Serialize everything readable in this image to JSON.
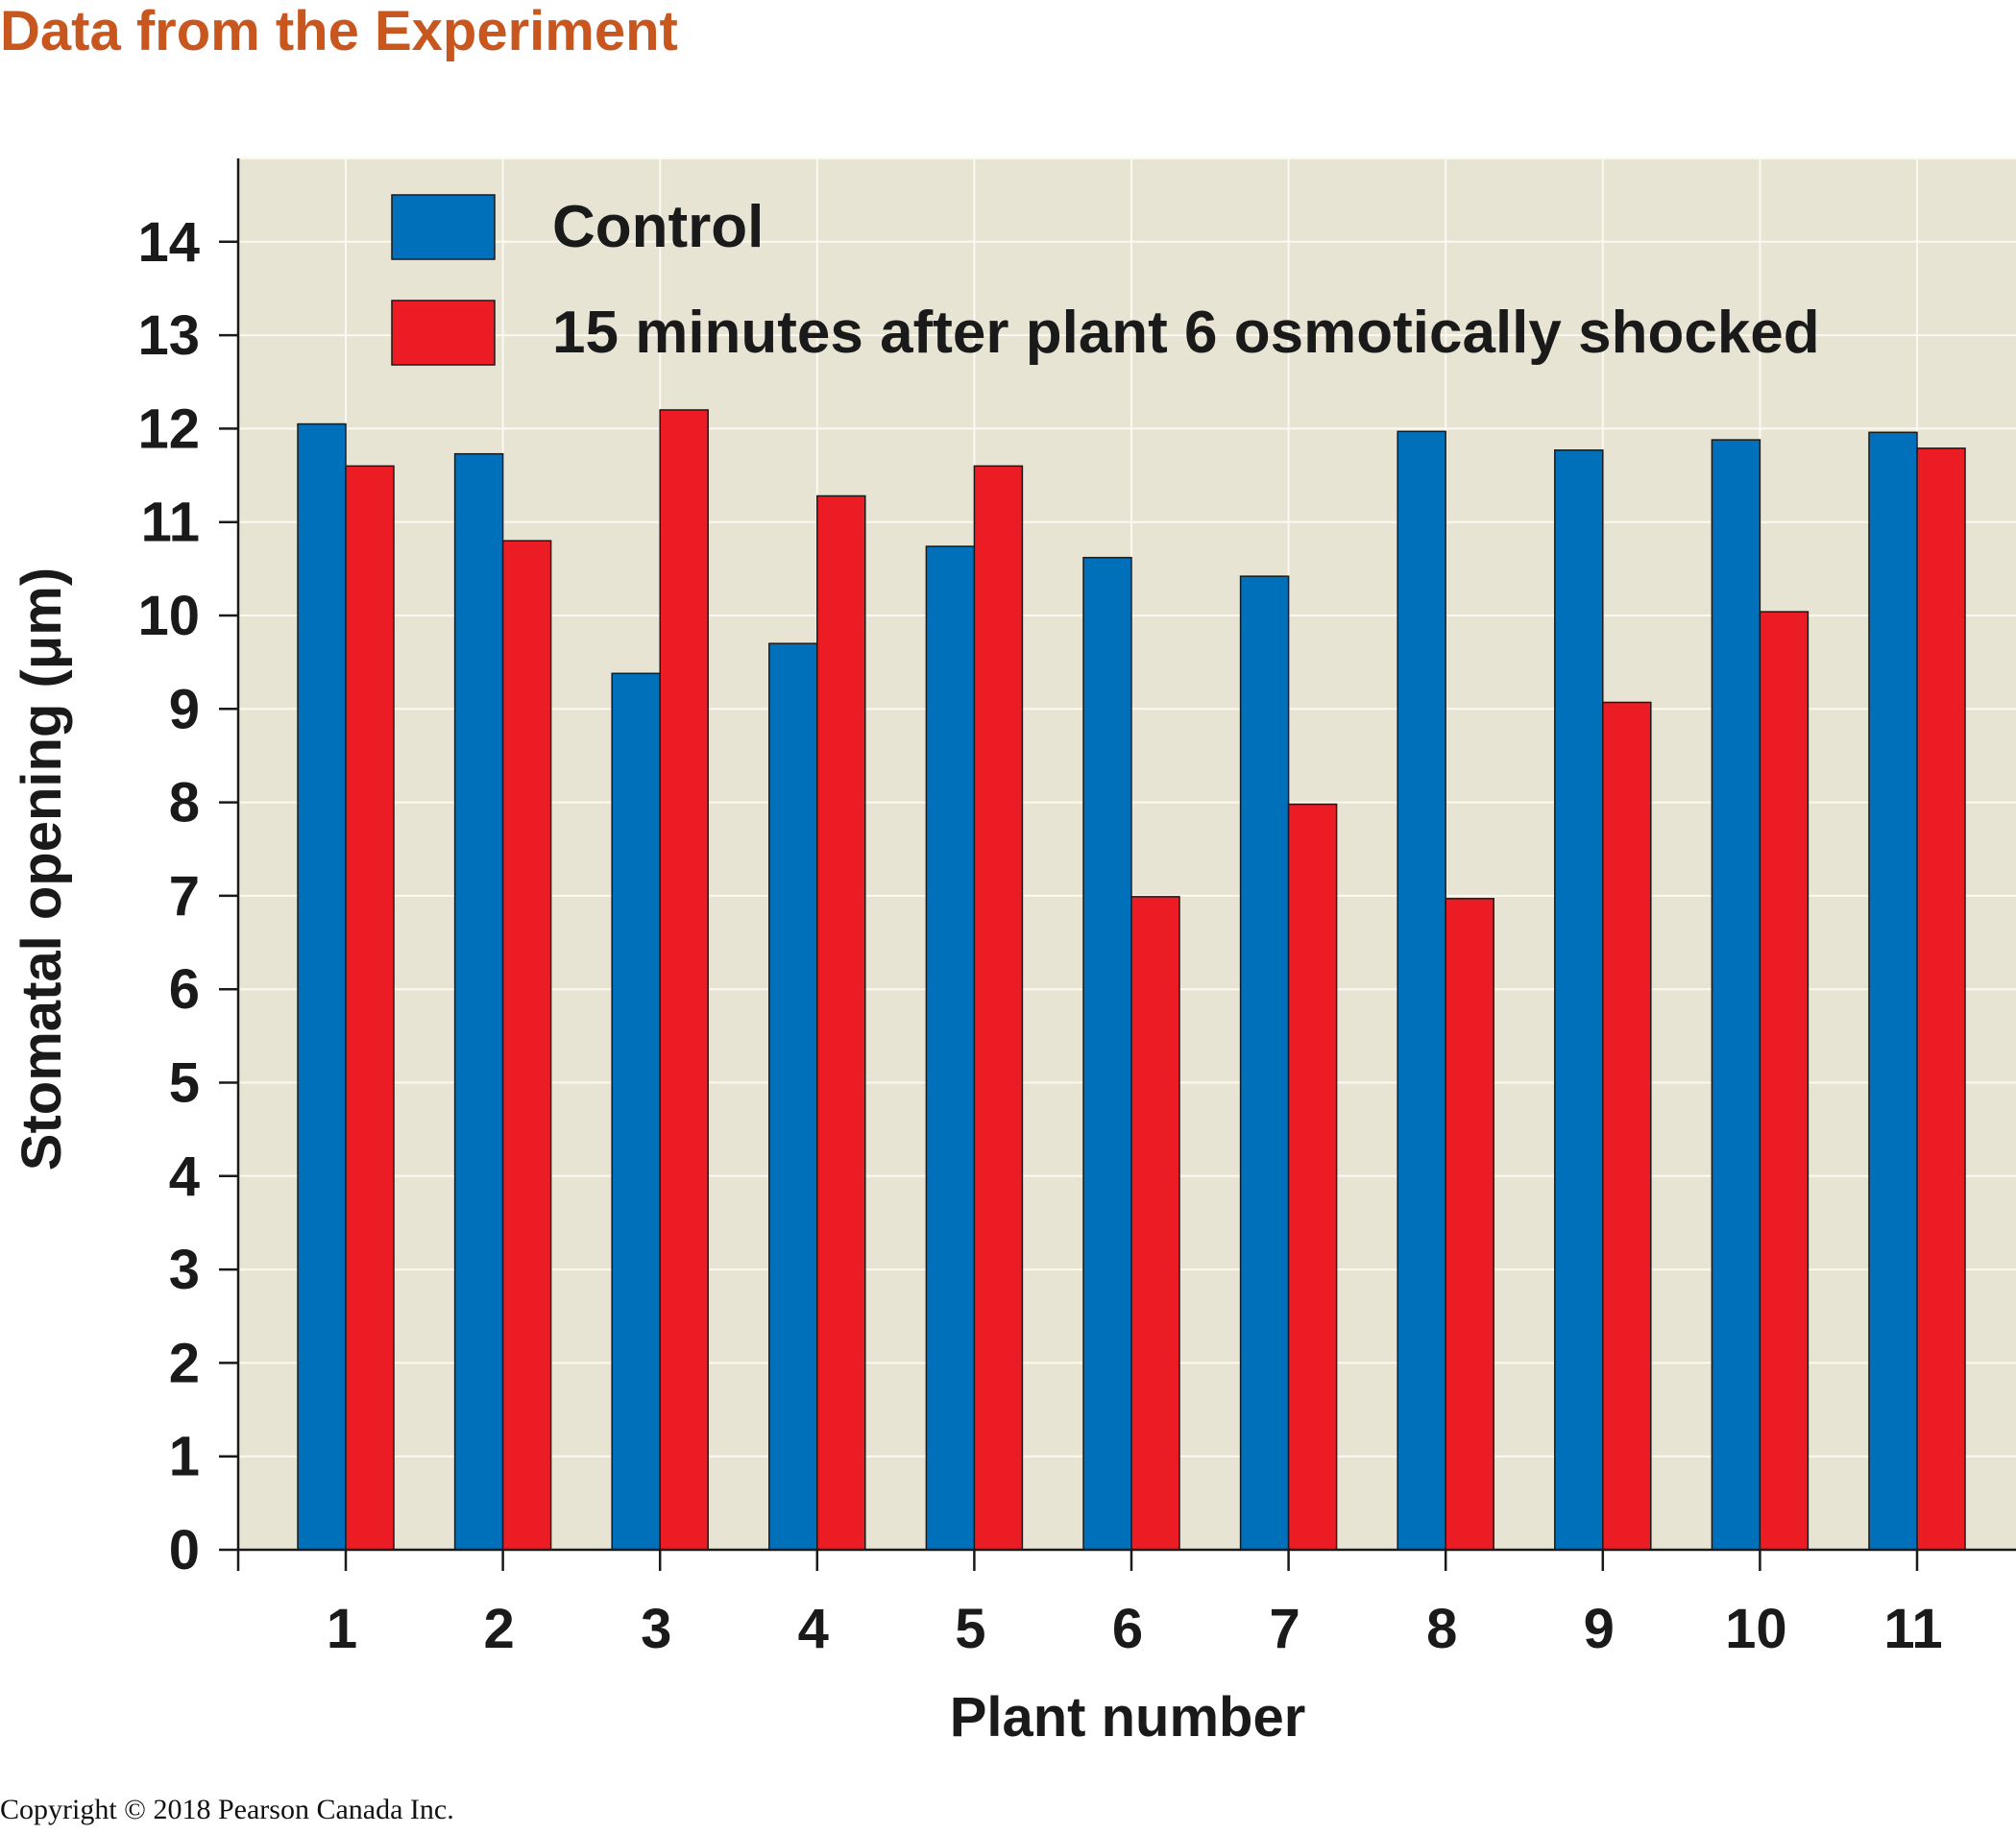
{
  "heading": "Data from the Experiment",
  "copyright": "Copyright © 2018 Pearson Canada Inc.",
  "colors": {
    "heading": "#c8561f",
    "control": "#0070bb",
    "shocked": "#ec1c24",
    "plot_bg": "#e8e4d4",
    "grid": "#fbf9f1"
  },
  "chart_data": {
    "type": "bar",
    "xlabel": "Plant number",
    "ylabel": "Stomatal opening (μm)",
    "ylim": [
      0,
      14
    ],
    "y_ticks": [
      0,
      1,
      2,
      3,
      4,
      5,
      6,
      7,
      8,
      9,
      10,
      11,
      12,
      13,
      14
    ],
    "grid": true,
    "legend": "top-left, inside plot",
    "categories": [
      "1",
      "2",
      "3",
      "4",
      "5",
      "6",
      "7",
      "8",
      "9",
      "10",
      "11"
    ],
    "series": [
      {
        "name": "Control",
        "color": "#0070bb",
        "values": [
          12.05,
          11.73,
          9.38,
          9.7,
          10.74,
          10.62,
          10.42,
          11.97,
          11.77,
          11.88,
          11.96
        ]
      },
      {
        "name": "15 minutes after plant 6 osmotically shocked",
        "color": "#ec1c24",
        "values": [
          11.6,
          10.8,
          12.2,
          11.28,
          11.6,
          6.99,
          7.98,
          6.97,
          9.07,
          10.04,
          11.79
        ]
      }
    ]
  }
}
